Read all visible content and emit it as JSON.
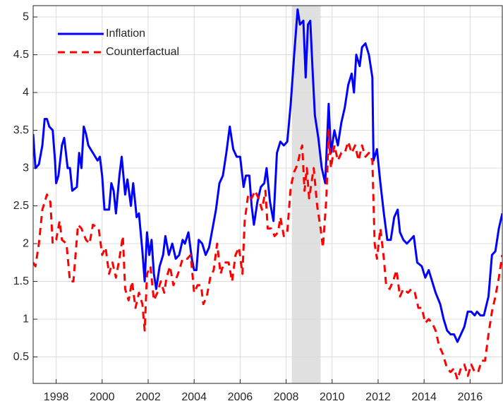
{
  "chart_data": {
    "type": "line",
    "xlim": [
      1997,
      2017.4
    ],
    "ylim": [
      0.15,
      5.15
    ],
    "xticks": [
      1998,
      2000,
      2002,
      2004,
      2006,
      2008,
      2010,
      2012,
      2014,
      2016
    ],
    "yticks": [
      0.5,
      1,
      1.5,
      2,
      2.5,
      3,
      3.5,
      4,
      4.5,
      5
    ],
    "grid": true,
    "legend": "upper-left",
    "shade": [
      2008.25,
      2009.5
    ],
    "shade_color": "#e0e0e0",
    "series": [
      {
        "name": "Inflation",
        "color": "#0000ff",
        "dash": "none",
        "x": [
          1997.0,
          1997.1,
          1997.25,
          1997.4,
          1997.5,
          1997.6,
          1997.7,
          1997.85,
          1997.95,
          1998.0,
          1998.1,
          1998.25,
          1998.35,
          1998.5,
          1998.6,
          1998.7,
          1998.9,
          1999.0,
          1999.1,
          1999.2,
          1999.3,
          1999.4,
          1999.6,
          1999.8,
          1999.9,
          2000.0,
          2000.1,
          2000.3,
          2000.4,
          2000.5,
          2000.6,
          2000.75,
          2000.85,
          2001.0,
          2001.1,
          2001.25,
          2001.35,
          2001.5,
          2001.6,
          2001.75,
          2001.85,
          2001.95,
          2002.05,
          2002.15,
          2002.25,
          2002.35,
          2002.5,
          2002.65,
          2002.75,
          2002.9,
          2003.05,
          2003.2,
          2003.35,
          2003.5,
          2003.6,
          2003.75,
          2003.9,
          2004.0,
          2004.1,
          2004.2,
          2004.35,
          2004.5,
          2004.65,
          2004.8,
          2004.95,
          2005.1,
          2005.25,
          2005.4,
          2005.55,
          2005.7,
          2005.85,
          2006.0,
          2006.15,
          2006.25,
          2006.4,
          2006.5,
          2006.6,
          2006.75,
          2006.9,
          2007.05,
          2007.15,
          2007.3,
          2007.45,
          2007.6,
          2007.75,
          2007.9,
          2008.05,
          2008.2,
          2008.35,
          2008.5,
          2008.6,
          2008.75,
          2008.85,
          2008.95,
          2009.05,
          2009.15,
          2009.25,
          2009.4,
          2009.55,
          2009.7,
          2009.85,
          2009.95,
          2010.1,
          2010.25,
          2010.4,
          2010.55,
          2010.7,
          2010.85,
          2010.95,
          2011.05,
          2011.2,
          2011.3,
          2011.45,
          2011.6,
          2011.75,
          2011.8,
          2011.95,
          2012.1,
          2012.25,
          2012.4,
          2012.55,
          2012.7,
          2012.85,
          2012.95,
          2013.1,
          2013.25,
          2013.4,
          2013.55,
          2013.7,
          2013.9,
          2014.05,
          2014.2,
          2014.35,
          2014.5,
          2014.7,
          2014.85,
          2015.0,
          2015.15,
          2015.3,
          2015.45,
          2015.6,
          2015.75,
          2015.9,
          2016.05,
          2016.2,
          2016.3,
          2016.45,
          2016.6,
          2016.8,
          2016.95,
          2017.1,
          2017.25,
          2017.4
        ],
        "values": [
          3.45,
          3.0,
          3.05,
          3.3,
          3.65,
          3.65,
          3.55,
          3.5,
          3.1,
          2.8,
          2.9,
          3.3,
          3.4,
          3.0,
          3.0,
          2.7,
          2.75,
          3.2,
          3.0,
          3.55,
          3.45,
          3.3,
          3.2,
          3.1,
          3.15,
          2.9,
          2.45,
          2.45,
          2.8,
          2.7,
          2.4,
          2.9,
          3.15,
          2.65,
          2.85,
          2.5,
          2.8,
          2.35,
          2.4,
          1.9,
          1.5,
          2.15,
          1.85,
          2.05,
          1.6,
          1.4,
          1.7,
          1.85,
          2.1,
          1.85,
          2.0,
          1.8,
          1.85,
          2.05,
          2.0,
          2.15,
          1.8,
          1.65,
          1.65,
          2.05,
          2.0,
          1.85,
          1.95,
          2.2,
          2.45,
          2.8,
          2.9,
          3.2,
          3.55,
          3.25,
          3.15,
          3.15,
          2.75,
          2.9,
          2.9,
          2.5,
          2.25,
          2.55,
          2.75,
          2.8,
          3.0,
          2.55,
          2.3,
          3.2,
          3.35,
          3.3,
          3.35,
          3.85,
          4.5,
          5.1,
          4.9,
          4.95,
          4.2,
          4.9,
          4.95,
          4.3,
          3.7,
          3.4,
          3.0,
          2.8,
          3.85,
          3.2,
          3.5,
          3.3,
          3.6,
          3.8,
          4.1,
          4.25,
          4.0,
          4.5,
          4.35,
          4.6,
          4.65,
          4.5,
          4.2,
          3.1,
          3.25,
          2.8,
          2.4,
          2.05,
          2.05,
          2.35,
          2.45,
          2.15,
          2.05,
          2.0,
          2.05,
          2.1,
          1.75,
          1.7,
          1.55,
          1.65,
          1.5,
          1.35,
          1.2,
          1.0,
          0.85,
          0.8,
          0.8,
          0.7,
          0.8,
          0.9,
          1.1,
          1.1,
          1.05,
          1.1,
          1.05,
          1.05,
          1.3,
          1.85,
          1.9,
          2.2,
          2.4
        ]
      },
      {
        "name": "Counterfactual",
        "color": "#ff0000",
        "dash": "10,7",
        "x": [
          1997.0,
          1997.1,
          1997.25,
          1997.4,
          1997.6,
          1997.75,
          1997.85,
          1998.0,
          1998.15,
          1998.25,
          1998.45,
          1998.6,
          1998.75,
          1998.95,
          1999.1,
          1999.3,
          1999.45,
          1999.6,
          1999.85,
          2000.0,
          2000.15,
          2000.3,
          2000.45,
          2000.6,
          2000.75,
          2000.9,
          2001.0,
          2001.15,
          2001.3,
          2001.45,
          2001.6,
          2001.75,
          2001.85,
          2001.95,
          2002.1,
          2002.25,
          2002.4,
          2002.55,
          2002.7,
          2002.8,
          2002.95,
          2003.1,
          2003.3,
          2003.5,
          2003.7,
          2003.85,
          2004.0,
          2004.15,
          2004.3,
          2004.4,
          2004.55,
          2004.7,
          2004.85,
          2005.0,
          2005.15,
          2005.3,
          2005.5,
          2005.65,
          2005.8,
          2005.95,
          2006.1,
          2006.2,
          2006.35,
          2006.5,
          2006.65,
          2006.8,
          2006.95,
          2007.1,
          2007.2,
          2007.35,
          2007.5,
          2007.65,
          2007.75,
          2007.9,
          2008.05,
          2008.2,
          2008.35,
          2008.5,
          2008.6,
          2008.7,
          2008.8,
          2008.9,
          2009.0,
          2009.1,
          2009.2,
          2009.35,
          2009.5,
          2009.6,
          2009.75,
          2009.85,
          2009.95,
          2010.1,
          2010.25,
          2010.4,
          2010.55,
          2010.7,
          2010.85,
          2011.0,
          2011.15,
          2011.3,
          2011.45,
          2011.6,
          2011.75,
          2011.85,
          2011.95,
          2012.1,
          2012.25,
          2012.35,
          2012.5,
          2012.65,
          2012.8,
          2012.95,
          2013.1,
          2013.3,
          2013.45,
          2013.6,
          2013.75,
          2013.9,
          2014.05,
          2014.2,
          2014.35,
          2014.5,
          2014.65,
          2014.8,
          2015.0,
          2015.15,
          2015.3,
          2015.45,
          2015.6,
          2015.75,
          2015.9,
          2016.05,
          2016.2,
          2016.35,
          2016.5,
          2016.65,
          2016.8,
          2016.95,
          2017.1,
          2017.25,
          2017.4
        ],
        "values": [
          1.75,
          1.7,
          2.0,
          2.45,
          2.65,
          2.55,
          2.0,
          2.05,
          2.3,
          2.05,
          2.0,
          1.5,
          1.5,
          2.25,
          2.2,
          2.05,
          2.0,
          2.25,
          2.2,
          1.85,
          1.95,
          1.6,
          1.75,
          1.55,
          1.8,
          2.1,
          1.4,
          1.25,
          1.5,
          1.15,
          1.35,
          1.2,
          0.85,
          1.6,
          1.7,
          1.25,
          1.35,
          1.5,
          1.35,
          1.55,
          1.7,
          1.45,
          1.6,
          1.8,
          1.8,
          1.85,
          1.35,
          1.45,
          1.45,
          1.2,
          1.3,
          1.55,
          1.65,
          2.0,
          1.6,
          1.75,
          1.75,
          1.5,
          1.85,
          1.95,
          1.6,
          2.3,
          2.65,
          2.6,
          2.7,
          2.6,
          2.45,
          2.7,
          2.2,
          2.2,
          2.1,
          2.15,
          2.35,
          2.1,
          2.15,
          2.75,
          2.95,
          3.05,
          3.2,
          3.3,
          2.7,
          3.0,
          2.6,
          2.8,
          3.0,
          2.5,
          2.2,
          1.95,
          2.6,
          3.5,
          3.0,
          3.3,
          3.1,
          3.2,
          3.2,
          3.35,
          3.2,
          3.3,
          3.1,
          3.3,
          3.15,
          3.2,
          3.1,
          2.0,
          1.8,
          2.2,
          1.8,
          1.45,
          1.4,
          1.5,
          1.65,
          1.3,
          1.4,
          1.35,
          1.4,
          1.35,
          1.15,
          1.15,
          0.95,
          1.0,
          0.95,
          0.85,
          0.65,
          0.55,
          0.35,
          0.3,
          0.35,
          0.2,
          0.35,
          0.4,
          0.25,
          0.4,
          0.3,
          0.3,
          0.45,
          0.45,
          0.8,
          1.1,
          1.3,
          1.55,
          1.85
        ]
      }
    ]
  }
}
